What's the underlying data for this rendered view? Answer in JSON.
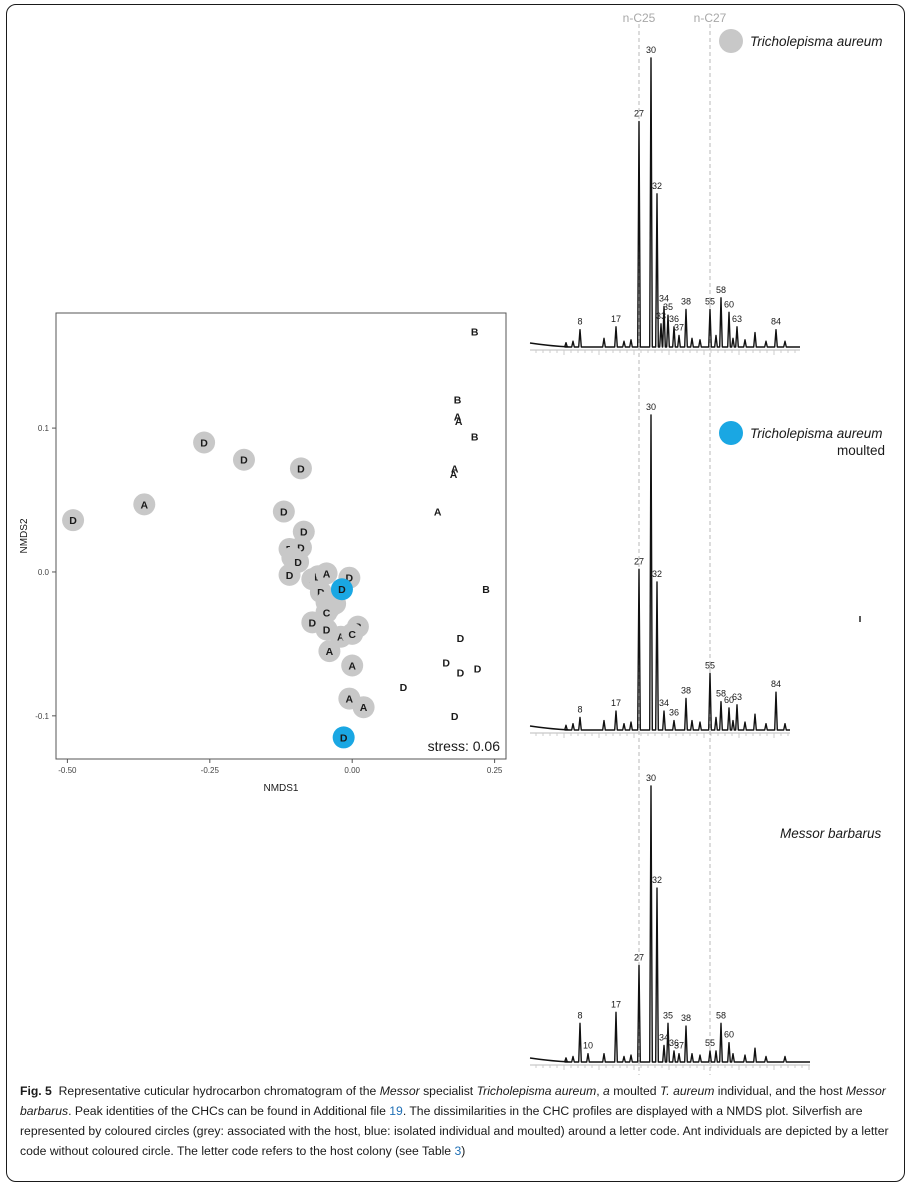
{
  "caption": {
    "fig_label": "Fig. 5",
    "text_1": "Representative cuticular hydrocarbon chromatogram of the ",
    "italic_1": "Messor",
    "text_2": " specialist ",
    "italic_2": "Tricholepisma aureum",
    "text_3": ", ",
    "italic_3": "a",
    "text_4": " moulted ",
    "italic_4": "T. aureum",
    "text_5": " individual, and the host ",
    "italic_5": "Messor barbarus",
    "text_6": ". Peak identities of the CHCs can be found in Additional file ",
    "link_1": "19",
    "text_7": ". The dissimilarities in the CHC profiles are displayed with a NMDS plot. Silverfish are represented by coloured circles (grey: associated with the host, blue: isolated individual and moulted) around a letter code. Ant individuals are depicted by a letter code without coloured circle. The letter code refers to the host colony (see Table ",
    "link_2": "3",
    "text_8": ")"
  },
  "reference_lines": [
    "n-C25",
    "n-C27"
  ],
  "panels": [
    {
      "title": "Tricholepisma aureum",
      "subtitle": "",
      "marker_color": "#c8c8c8"
    },
    {
      "title": "Tricholepisma aureum",
      "subtitle": "moulted",
      "marker_color": "#1aa7e3"
    },
    {
      "title": "Messor barbarus",
      "subtitle": "",
      "marker_color": ""
    }
  ],
  "chart_data": [
    {
      "type": "scatter",
      "xlabel": "NMDS1",
      "ylabel": "NMDS2",
      "xlim": [
        -0.52,
        0.27
      ],
      "ylim": [
        -0.13,
        0.18
      ],
      "xticks": [
        "-0.50",
        "-0.25",
        "0.00",
        "0.25"
      ],
      "yticks": [
        "-0.1",
        "0.0",
        "0.1"
      ],
      "annotation": "stress: 0.06",
      "grid": false,
      "colors": {
        "grey": "#c8c8c8",
        "blue": "#1aa7e3"
      },
      "points": [
        {
          "x": -0.49,
          "y": 0.036,
          "label": "D",
          "circle": "grey"
        },
        {
          "x": -0.365,
          "y": 0.047,
          "label": "A",
          "circle": "grey"
        },
        {
          "x": -0.26,
          "y": 0.09,
          "label": "D",
          "circle": "grey"
        },
        {
          "x": -0.19,
          "y": 0.078,
          "label": "D",
          "circle": "grey"
        },
        {
          "x": -0.09,
          "y": 0.072,
          "label": "D",
          "circle": "grey"
        },
        {
          "x": -0.12,
          "y": 0.042,
          "label": "D",
          "circle": "grey"
        },
        {
          "x": -0.085,
          "y": 0.028,
          "label": "D",
          "circle": "grey"
        },
        {
          "x": -0.11,
          "y": 0.016,
          "label": "D",
          "circle": "grey"
        },
        {
          "x": -0.09,
          "y": 0.017,
          "label": "D",
          "circle": "grey"
        },
        {
          "x": -0.105,
          "y": 0.01,
          "label": "C",
          "circle": "grey"
        },
        {
          "x": -0.095,
          "y": 0.007,
          "label": "D",
          "circle": "grey"
        },
        {
          "x": -0.11,
          "y": -0.002,
          "label": "D",
          "circle": "grey"
        },
        {
          "x": -0.07,
          "y": -0.005,
          "label": "D",
          "circle": "grey"
        },
        {
          "x": -0.06,
          "y": -0.003,
          "label": "D",
          "circle": "grey"
        },
        {
          "x": -0.045,
          "y": -0.001,
          "label": "A",
          "circle": "grey"
        },
        {
          "x": -0.005,
          "y": -0.004,
          "label": "D",
          "circle": "grey"
        },
        {
          "x": -0.055,
          "y": -0.014,
          "label": "D",
          "circle": "grey"
        },
        {
          "x": -0.045,
          "y": -0.021,
          "label": "A",
          "circle": "grey"
        },
        {
          "x": -0.03,
          "y": -0.022,
          "label": "D",
          "circle": "grey"
        },
        {
          "x": -0.04,
          "y": -0.025,
          "label": "D",
          "circle": "grey"
        },
        {
          "x": -0.045,
          "y": -0.028,
          "label": "C",
          "circle": "grey"
        },
        {
          "x": -0.07,
          "y": -0.035,
          "label": "D",
          "circle": "grey"
        },
        {
          "x": -0.045,
          "y": -0.04,
          "label": "D",
          "circle": "grey"
        },
        {
          "x": -0.02,
          "y": -0.045,
          "label": "A",
          "circle": "grey"
        },
        {
          "x": 0.01,
          "y": -0.038,
          "label": "B",
          "circle": "grey"
        },
        {
          "x": 0.0,
          "y": -0.043,
          "label": "C",
          "circle": "grey"
        },
        {
          "x": -0.04,
          "y": -0.055,
          "label": "A",
          "circle": "grey"
        },
        {
          "x": 0.0,
          "y": -0.065,
          "label": "A",
          "circle": "grey"
        },
        {
          "x": -0.005,
          "y": -0.088,
          "label": "A",
          "circle": "grey"
        },
        {
          "x": 0.02,
          "y": -0.094,
          "label": "A",
          "circle": "grey"
        },
        {
          "x": -0.018,
          "y": -0.012,
          "label": "D",
          "circle": "blue"
        },
        {
          "x": -0.015,
          "y": -0.115,
          "label": "D",
          "circle": "blue"
        },
        {
          "x": 0.215,
          "y": 0.167,
          "label": "B",
          "circle": "none"
        },
        {
          "x": 0.185,
          "y": 0.12,
          "label": "B",
          "circle": "none"
        },
        {
          "x": 0.185,
          "y": 0.108,
          "label": "A",
          "circle": "none"
        },
        {
          "x": 0.187,
          "y": 0.105,
          "label": "A",
          "circle": "none"
        },
        {
          "x": 0.215,
          "y": 0.094,
          "label": "B",
          "circle": "none"
        },
        {
          "x": 0.18,
          "y": 0.072,
          "label": "A",
          "circle": "none"
        },
        {
          "x": 0.178,
          "y": 0.068,
          "label": "A",
          "circle": "none"
        },
        {
          "x": 0.15,
          "y": 0.042,
          "label": "A",
          "circle": "none"
        },
        {
          "x": 0.235,
          "y": -0.012,
          "label": "B",
          "circle": "none"
        },
        {
          "x": 0.19,
          "y": -0.046,
          "label": "D",
          "circle": "none"
        },
        {
          "x": 0.165,
          "y": -0.063,
          "label": "D",
          "circle": "none"
        },
        {
          "x": 0.19,
          "y": -0.07,
          "label": "D",
          "circle": "none"
        },
        {
          "x": 0.22,
          "y": -0.067,
          "label": "D",
          "circle": "none"
        },
        {
          "x": 0.09,
          "y": -0.08,
          "label": "D",
          "circle": "none"
        },
        {
          "x": 0.18,
          "y": -0.1,
          "label": "D",
          "circle": "none"
        }
      ]
    },
    {
      "type": "line",
      "title": "Tricholepisma aureum",
      "reference_lines": [
        "n-C25",
        "n-C27"
      ],
      "peaks": [
        {
          "label": "8",
          "height": 0.06
        },
        {
          "label": "17",
          "height": 0.07
        },
        {
          "label": "27",
          "height": 0.78
        },
        {
          "label": "30",
          "height": 1.0
        },
        {
          "label": "32",
          "height": 0.53
        },
        {
          "label": "33",
          "height": 0.08
        },
        {
          "label": "34",
          "height": 0.14
        },
        {
          "label": "35",
          "height": 0.11
        },
        {
          "label": "36",
          "height": 0.07
        },
        {
          "label": "37",
          "height": 0.04
        },
        {
          "label": "38",
          "height": 0.13
        },
        {
          "label": "55",
          "height": 0.13
        },
        {
          "label": "58",
          "height": 0.17
        },
        {
          "label": "60",
          "height": 0.12
        },
        {
          "label": "63",
          "height": 0.07
        },
        {
          "label": "84",
          "height": 0.06
        }
      ]
    },
    {
      "type": "line",
      "title": "Tricholepisma aureum moulted",
      "reference_lines": [
        "n-C25",
        "n-C27"
      ],
      "peaks": [
        {
          "label": "8",
          "height": 0.04
        },
        {
          "label": "17",
          "height": 0.06
        },
        {
          "label": "27",
          "height": 0.51
        },
        {
          "label": "30",
          "height": 1.0
        },
        {
          "label": "32",
          "height": 0.47
        },
        {
          "label": "34",
          "height": 0.06
        },
        {
          "label": "36",
          "height": 0.03
        },
        {
          "label": "38",
          "height": 0.1
        },
        {
          "label": "55",
          "height": 0.18
        },
        {
          "label": "58",
          "height": 0.09
        },
        {
          "label": "60",
          "height": 0.07
        },
        {
          "label": "63",
          "height": 0.08
        },
        {
          "label": "84",
          "height": 0.12
        }
      ]
    },
    {
      "type": "line",
      "title": "Messor barbarus",
      "reference_lines": [
        "n-C25",
        "n-C27"
      ],
      "peaks": [
        {
          "label": "8",
          "height": 0.14
        },
        {
          "label": "10",
          "height": 0.03
        },
        {
          "label": "17",
          "height": 0.18
        },
        {
          "label": "27",
          "height": 0.35
        },
        {
          "label": "30",
          "height": 1.0
        },
        {
          "label": "32",
          "height": 0.63
        },
        {
          "label": "34",
          "height": 0.06
        },
        {
          "label": "35",
          "height": 0.14
        },
        {
          "label": "36",
          "height": 0.04
        },
        {
          "label": "37",
          "height": 0.03
        },
        {
          "label": "38",
          "height": 0.13
        },
        {
          "label": "55",
          "height": 0.04
        },
        {
          "label": "58",
          "height": 0.14
        },
        {
          "label": "60",
          "height": 0.07
        }
      ]
    }
  ]
}
